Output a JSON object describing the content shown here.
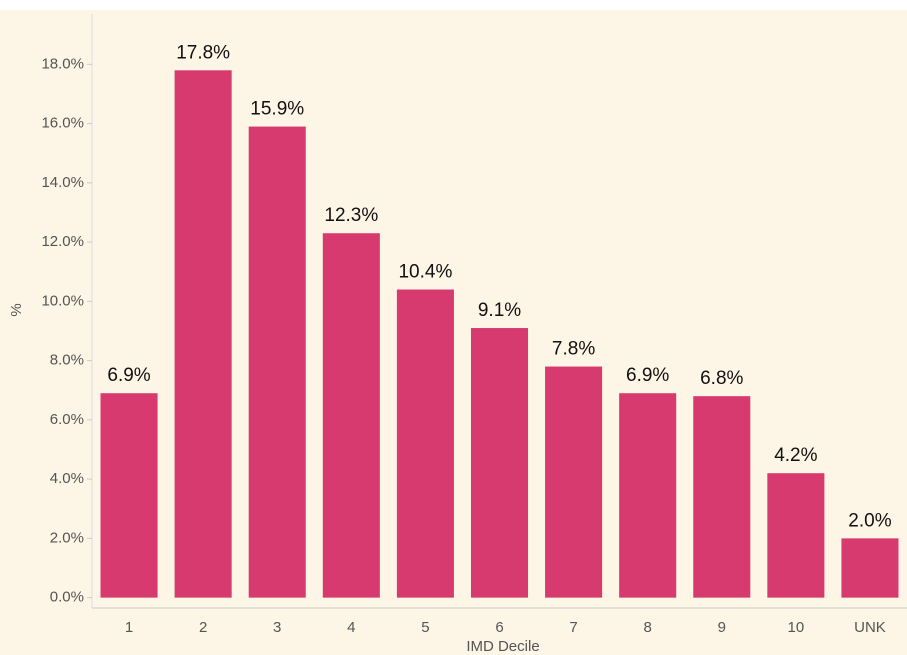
{
  "chart_data": {
    "type": "bar",
    "x_label": "IMD Decile",
    "y_label": "%",
    "categories": [
      "1",
      "2",
      "3",
      "4",
      "5",
      "6",
      "7",
      "8",
      "9",
      "10",
      "UNK"
    ],
    "values": [
      6.9,
      17.8,
      15.9,
      12.3,
      10.4,
      9.1,
      7.8,
      6.9,
      6.8,
      4.2,
      2.0
    ],
    "value_labels": [
      "6.9%",
      "17.8%",
      "15.9%",
      "12.3%",
      "10.4%",
      "9.1%",
      "7.8%",
      "6.9%",
      "6.8%",
      "4.2%",
      "2.0%"
    ],
    "color": "#d63a6e",
    "ylim": [
      -0.35,
      19.7
    ],
    "yticks": [
      {
        "value": 0,
        "label": "0.0%"
      },
      {
        "value": 2,
        "label": "2.0%"
      },
      {
        "value": 4,
        "label": "4.0%"
      },
      {
        "value": 6,
        "label": "6.0%"
      },
      {
        "value": 8,
        "label": "8.0%"
      },
      {
        "value": 10,
        "label": "10.0%"
      },
      {
        "value": 12,
        "label": "12.0%"
      },
      {
        "value": 14,
        "label": "14.0%"
      },
      {
        "value": 16,
        "label": "16.0%"
      },
      {
        "value": 18,
        "label": "18.0%"
      }
    ]
  }
}
